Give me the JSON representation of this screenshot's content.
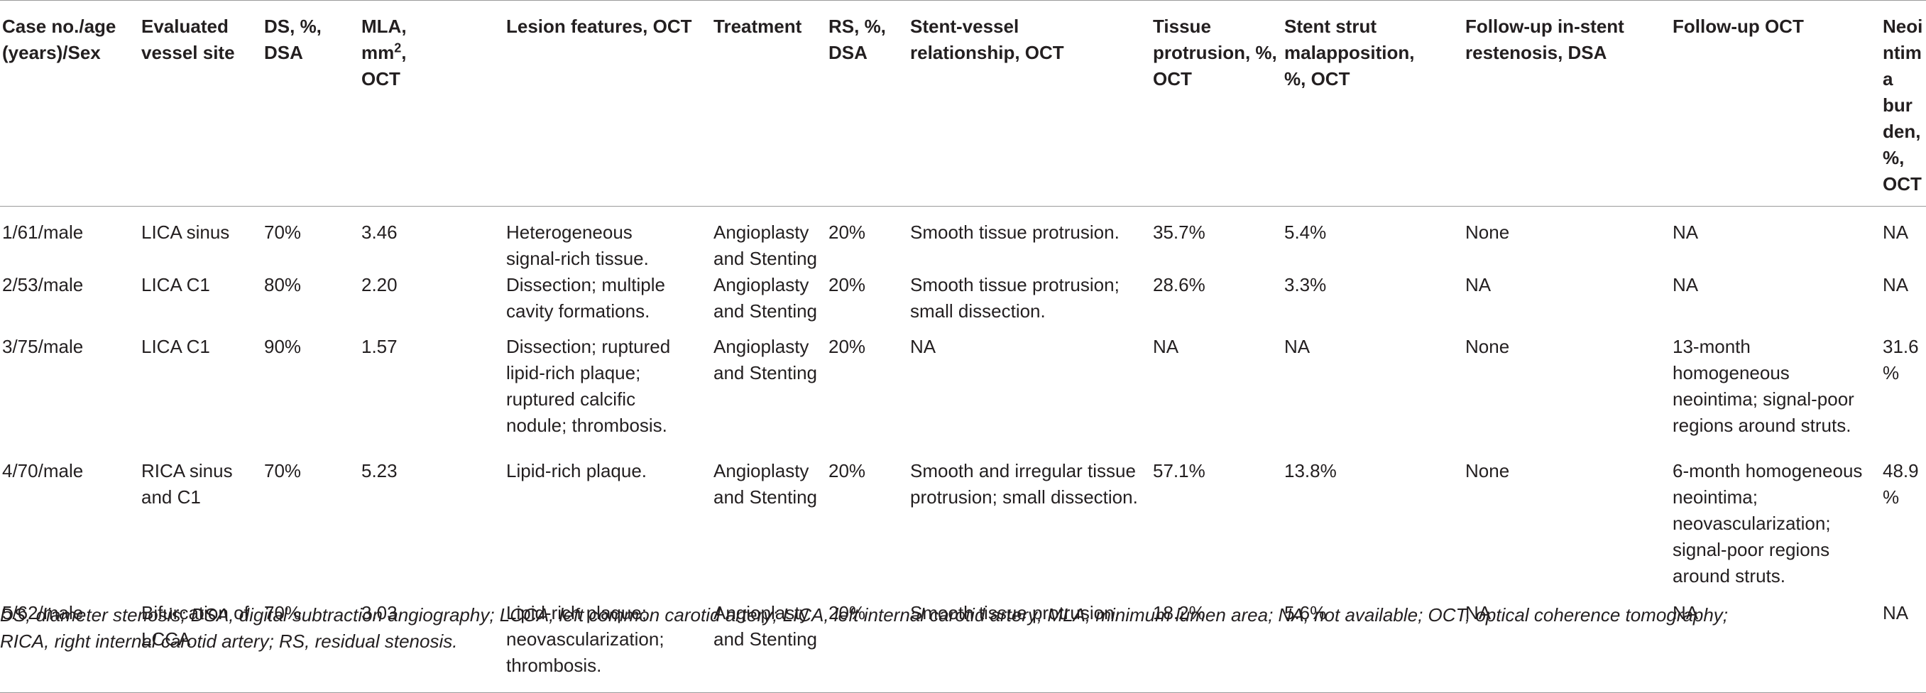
{
  "table": {
    "headers": [
      [
        "Case no./age",
        "(years)/Sex"
      ],
      [
        "Evaluated",
        "vessel site"
      ],
      [
        "DS, %,",
        "DSA"
      ],
      [
        "MLA,",
        "mm",
        "OCT"
      ],
      [
        "Lesion features, OCT"
      ],
      [
        "Treatment"
      ],
      [
        "RS, %,",
        "DSA"
      ],
      [
        "Stent-vessel",
        "relationship, OCT"
      ],
      [
        "Tissue",
        "protrusion, %,",
        "OCT"
      ],
      [
        "Stent strut",
        "malapposition,",
        "%, OCT"
      ],
      [
        "Follow-up in-stent",
        "restenosis, DSA"
      ],
      [
        "Follow-up OCT"
      ],
      [
        "Neointima",
        "burden, %,",
        "OCT"
      ]
    ],
    "mla_superscript": "2",
    "rows": [
      [
        [
          "1/61/male"
        ],
        [
          "LICA sinus"
        ],
        [
          "70%"
        ],
        [
          "3.46"
        ],
        [
          "Heterogeneous",
          "signal-rich tissue."
        ],
        [
          "Angioplasty",
          "and Stenting"
        ],
        [
          "20%"
        ],
        [
          "Smooth tissue protrusion."
        ],
        [
          "35.7%"
        ],
        [
          "5.4%"
        ],
        [
          "None"
        ],
        [
          "NA"
        ],
        [
          "NA"
        ]
      ],
      [
        [
          "2/53/male"
        ],
        [
          "LICA C1"
        ],
        [
          "80%"
        ],
        [
          "2.20"
        ],
        [
          "Dissection; multiple",
          "cavity formations."
        ],
        [
          "Angioplasty",
          "and Stenting"
        ],
        [
          "20%"
        ],
        [
          "Smooth tissue protrusion;",
          "small dissection."
        ],
        [
          "28.6%"
        ],
        [
          "3.3%"
        ],
        [
          "NA"
        ],
        [
          "NA"
        ],
        [
          "NA"
        ]
      ],
      [
        [
          "3/75/male"
        ],
        [
          "LICA C1"
        ],
        [
          "90%"
        ],
        [
          "1.57"
        ],
        [
          "Dissection; ruptured",
          "lipid-rich plaque;",
          "ruptured calcific",
          "nodule; thrombosis."
        ],
        [
          "Angioplasty",
          "and Stenting"
        ],
        [
          "20%"
        ],
        [
          "NA"
        ],
        [
          "NA"
        ],
        [
          "NA"
        ],
        [
          "None"
        ],
        [
          "13-month",
          "homogeneous",
          "neointima; signal-poor",
          "regions around struts."
        ],
        [
          "31.6%"
        ]
      ],
      [
        [
          "4/70/male"
        ],
        [
          "RICA sinus",
          "and C1"
        ],
        [
          "70%"
        ],
        [
          "5.23"
        ],
        [
          "Lipid-rich plaque."
        ],
        [
          "Angioplasty",
          "and Stenting"
        ],
        [
          "20%"
        ],
        [
          "Smooth and irregular tissue",
          "protrusion; small dissection."
        ],
        [
          "57.1%"
        ],
        [
          "13.8%"
        ],
        [
          "None"
        ],
        [
          "6-month homogeneous",
          "neointima;",
          "neovascularization;",
          "signal-poor regions",
          "around struts."
        ],
        [
          "48.9%"
        ]
      ],
      [
        [
          "5/62/male"
        ],
        [
          "Bifurcation of",
          "LCCA"
        ],
        [
          "70%"
        ],
        [
          "3.03"
        ],
        [
          "Lipid-rich plaque;",
          "neovascularization;",
          "thrombosis."
        ],
        [
          "Angioplasty",
          "and Stenting"
        ],
        [
          "20%"
        ],
        [
          "Smooth tissue protrusion."
        ],
        [
          "18.2%"
        ],
        [
          "5.6%"
        ],
        [
          "NA"
        ],
        [
          "NA"
        ],
        [
          "NA"
        ]
      ]
    ]
  },
  "footnote": [
    "DS, diameter stenosis; DSA, digital subtraction angiography; LCCA, left common carotid artery; LICA, left internal carotid artery; MLA, minimum lumen area; NA, not available; OCT, optical coherence tomography;",
    "RICA, right internal carotid artery; RS, residual stenosis."
  ],
  "colors": {
    "text": "#231f20",
    "rule": "#9a9a9a",
    "background": "#ffffff"
  }
}
